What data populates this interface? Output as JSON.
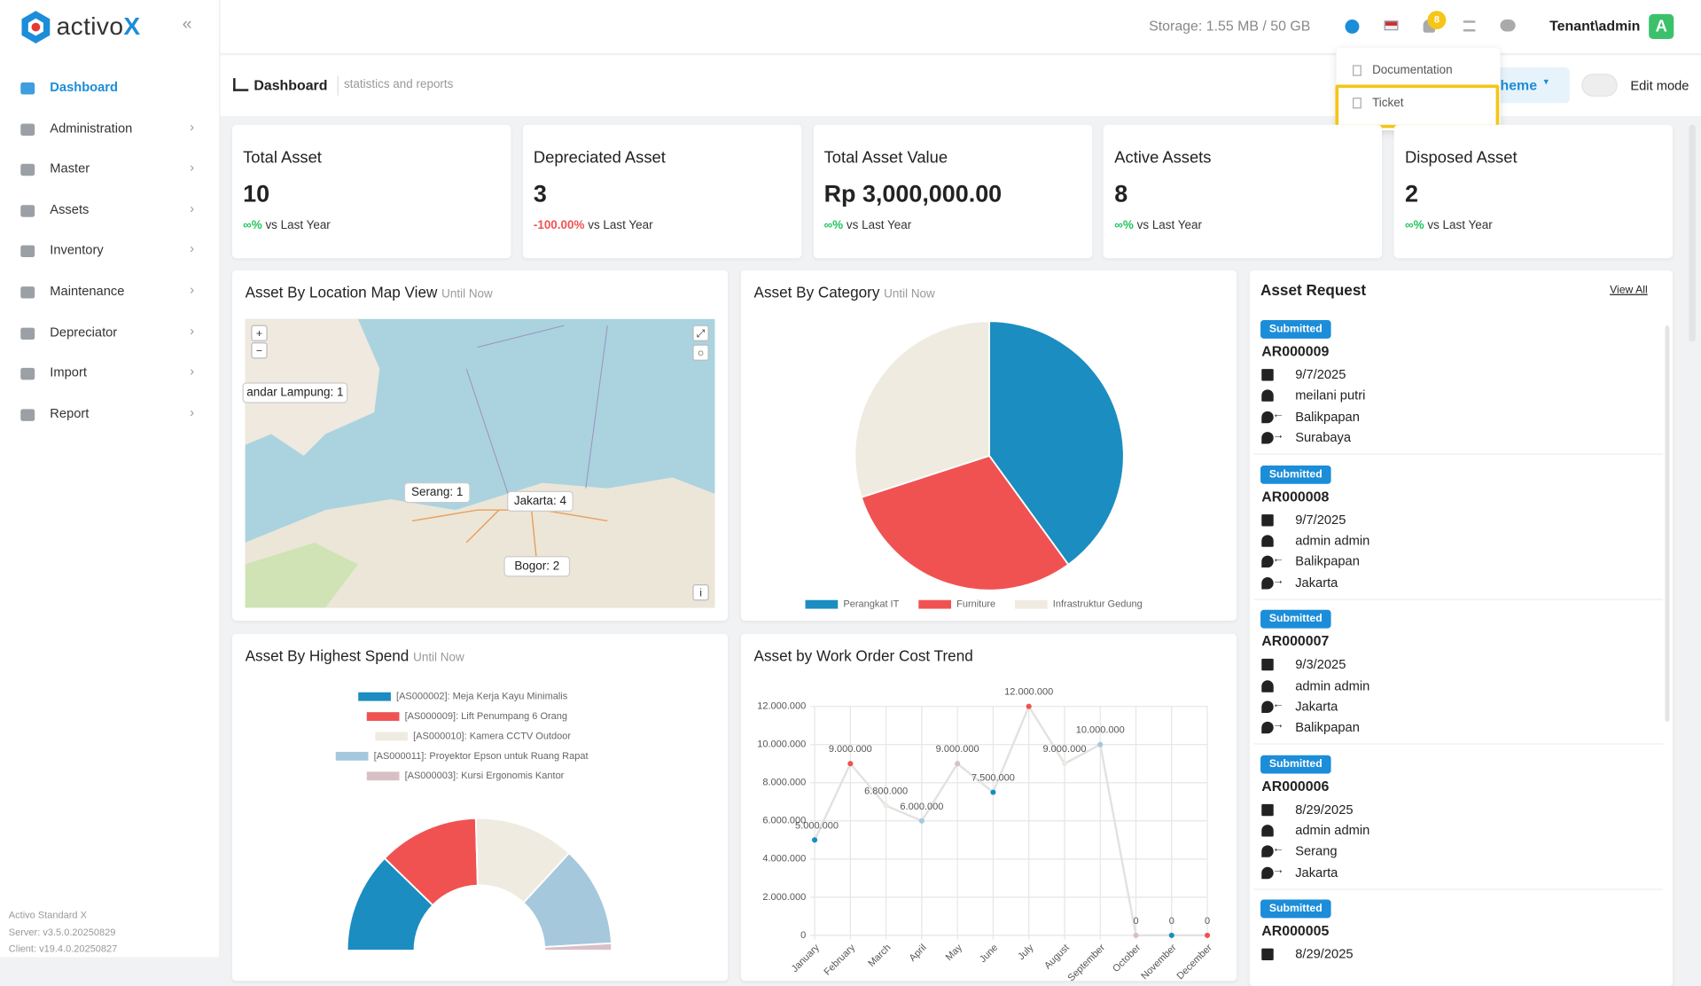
{
  "header": {
    "brand": {
      "name": "activo",
      "mark": "X"
    },
    "storage": "Storage: 1.55 MB / 50 GB",
    "notifications": "8",
    "user": "Tenant\\admin",
    "avatar": "A"
  },
  "help_menu": {
    "items": [
      "Documentation",
      "Ticket"
    ]
  },
  "sidebar": {
    "items": [
      "Dashboard",
      "Administration",
      "Master",
      "Assets",
      "Inventory",
      "Maintenance",
      "Depreciator",
      "Import",
      "Report"
    ],
    "footer": [
      "Activo Standard X",
      "Server: v3.5.0.20250829",
      "Client: v19.4.0.20250827"
    ]
  },
  "page": {
    "title": "Dashboard",
    "subtitle": "statistics and reports",
    "theme_button": "heme",
    "edit_mode": "Edit mode"
  },
  "kpis": [
    {
      "title": "Total Asset",
      "value": "10",
      "change": "∞%",
      "suffix": "vs Last Year"
    },
    {
      "title": "Depreciated Asset",
      "value": "3",
      "change": "-100.00%",
      "suffix": "vs Last Year"
    },
    {
      "title": "Total Asset Value",
      "value": "Rp 3,000,000.00",
      "change": "∞%",
      "suffix": "vs Last Year"
    },
    {
      "title": "Active Assets",
      "value": "8",
      "change": "∞%",
      "suffix": "vs Last Year"
    },
    {
      "title": "Disposed Asset",
      "value": "2",
      "change": "∞%",
      "suffix": "vs Last Year"
    }
  ],
  "map": {
    "title": "Asset By Location Map View",
    "qualifier": "Until Now",
    "markers": [
      "andar Lampung: 1",
      "Serang: 1",
      "Jakarta: 4",
      "Bogor: 2"
    ]
  },
  "requests": {
    "title": "Asset Request",
    "link": "View All",
    "items": [
      {
        "status": "Submitted",
        "id": "AR000009",
        "date": "9/7/2025",
        "requester": "meilani putri",
        "from": "Balikpapan",
        "to": "Surabaya"
      },
      {
        "status": "Submitted",
        "id": "AR000008",
        "date": "9/7/2025",
        "requester": "admin admin",
        "from": "Balikpapan",
        "to": "Jakarta"
      },
      {
        "status": "Submitted",
        "id": "AR000007",
        "date": "9/3/2025",
        "requester": "admin admin",
        "from": "Jakarta",
        "to": "Balikpapan"
      },
      {
        "status": "Submitted",
        "id": "AR000006",
        "date": "8/29/2025",
        "requester": "admin admin",
        "from": "Serang",
        "to": "Jakarta"
      },
      {
        "status": "Submitted",
        "id": "AR000005",
        "date": "8/29/2025"
      }
    ]
  },
  "chart_data": [
    {
      "type": "pie",
      "title": "Asset By Category",
      "subtitle": "Until Now",
      "categories": [
        "Perangkat IT",
        "Furniture",
        "Infrastruktur Gedung"
      ],
      "values": [
        4,
        3,
        3
      ],
      "colors": [
        "#1b8dc0",
        "#f05252",
        "#efebe0"
      ]
    },
    {
      "type": "doughnut",
      "title": "Asset By Highest Spend",
      "subtitle": "Until Now",
      "half": true,
      "categories": [
        "[AS000002]: Meja Kerja Kayu Minimalis",
        "[AS000009]: Lift Penumpang 6 Orang",
        "[AS000010]: Kamera CCTV Outdoor",
        "[AS000011]: Proyektor Epson untuk Ruang Rapat",
        "[AS000003]: Kursi Ergonomis Kantor"
      ],
      "values": [
        700000,
        700000,
        700000,
        700000,
        50000
      ],
      "colors": [
        "#1b8dc0",
        "#f05252",
        "#efebe0",
        "#a5c8dc",
        "#d8bfc6"
      ]
    },
    {
      "type": "line",
      "title": "Asset by Work Order Cost Trend",
      "categories": [
        "January",
        "February",
        "March",
        "April",
        "May",
        "June",
        "July",
        "August",
        "September",
        "October",
        "November",
        "December"
      ],
      "values": [
        5000000,
        9000000,
        6800000,
        6000000,
        9000000,
        7500000,
        12000000,
        9000000,
        10000000,
        0,
        0,
        0
      ],
      "value_labels": [
        "5.000.000",
        "9.000.000",
        "6.800.000",
        "6.000.000",
        "9.000.000",
        "7.500.000",
        "12.000.000",
        "9.000.000",
        "10.000.000",
        "0",
        "0",
        "0"
      ],
      "color": "#e2e2e2",
      "marker_colors": [
        "#1b8dc0",
        "#f05252",
        "#efebe0",
        "#a5c8dc",
        "#d8bfc6"
      ],
      "ylim": [
        0,
        12000000
      ],
      "yticks": [
        0,
        {
          "value": 2000000,
          "label": "2.000.000"
        },
        {
          "value": 4000000,
          "label": "4.000.000"
        },
        {
          "value": 6000000,
          "label": "6.000.000"
        },
        {
          "value": 8000000,
          "label": "8.000.000"
        },
        {
          "value": 10000000,
          "label": "10.000.000"
        },
        {
          "value": 12000000,
          "label": "12.000.000"
        }
      ],
      "grid": true
    }
  ]
}
